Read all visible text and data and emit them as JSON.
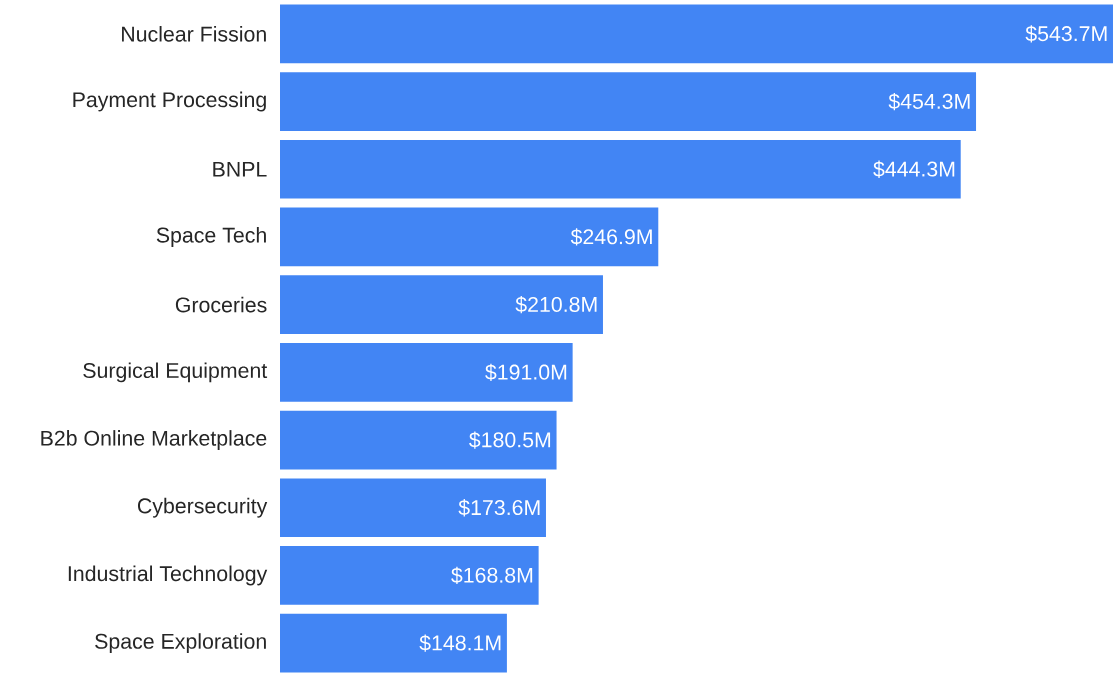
{
  "chart_data": {
    "type": "bar",
    "orientation": "horizontal",
    "color": "#4285f4",
    "categories": [
      "Nuclear Fission",
      "Payment Processing",
      "BNPL",
      "Space Tech",
      "Groceries",
      "Surgical Equipment",
      "B2b Online Marketplace",
      "Cybersecurity",
      "Industrial Technology",
      "Space Exploration"
    ],
    "values": [
      543.7,
      454.3,
      444.3,
      246.9,
      210.8,
      191.0,
      180.5,
      173.6,
      168.8,
      148.1
    ],
    "value_labels": [
      "$543.7M",
      "$454.3M",
      "$444.3M",
      "$246.9M",
      "$210.8M",
      "$191.0M",
      "$180.5M",
      "$173.6M",
      "$168.8M",
      "$148.1M"
    ]
  }
}
